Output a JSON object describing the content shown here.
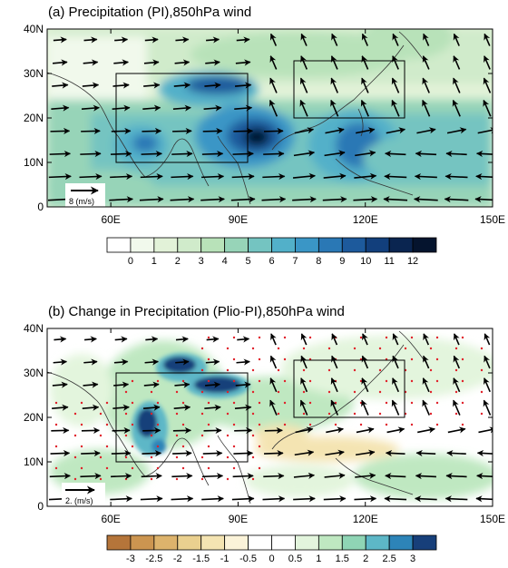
{
  "chart_data": [
    {
      "type": "map",
      "title": "(a) Precipitation (PI),850hPa wind",
      "x_ticks": [
        "60E",
        "90E",
        "120E",
        "150E"
      ],
      "y_ticks": [
        "0",
        "10N",
        "20N",
        "30N",
        "40N"
      ],
      "xlim": [
        45,
        150
      ],
      "ylim": [
        0,
        40
      ],
      "regions": [
        {
          "lon": [
            65,
            95
          ],
          "lat": [
            10,
            30
          ]
        },
        {
          "lon": [
            105,
            130
          ],
          "lat": [
            20,
            33
          ]
        }
      ],
      "reference_vector": {
        "label": "8 (m/s)"
      },
      "colorbar": {
        "labels": [
          "0",
          "1",
          "2",
          "3",
          "4",
          "5",
          "6",
          "7",
          "8",
          "9",
          "10",
          "11",
          "12"
        ],
        "colors": [
          "#ffffff",
          "#f1f9ec",
          "#e2f2d8",
          "#d0ebcb",
          "#b8e2b9",
          "#97d4b8",
          "#74c4c1",
          "#52b0c9",
          "#3a96c6",
          "#2a78b5",
          "#1d5a9c",
          "#123f7c",
          "#0a2550",
          "#05142e"
        ]
      }
    },
    {
      "type": "map",
      "title": "(b) Change in Precipitation (Plio-PI),850hPa wind",
      "x_ticks": [
        "60E",
        "90E",
        "120E",
        "150E"
      ],
      "y_ticks": [
        "0",
        "10N",
        "20N",
        "30N",
        "40N"
      ],
      "xlim": [
        45,
        150
      ],
      "ylim": [
        0,
        40
      ],
      "regions": [
        {
          "lon": [
            65,
            95
          ],
          "lat": [
            10,
            30
          ]
        },
        {
          "lon": [
            105,
            130
          ],
          "lat": [
            20,
            33
          ]
        }
      ],
      "reference_vector": {
        "label": "2. (m/s)"
      },
      "colorbar": {
        "labels": [
          "-3",
          "-2.5",
          "-2",
          "-1.5",
          "-1",
          "-0.5",
          "0",
          "0.5",
          "1",
          "1.5",
          "2",
          "2.5",
          "3"
        ],
        "colors": [
          "#b5753a",
          "#cc9550",
          "#ddb36c",
          "#ead08f",
          "#f4e4b2",
          "#fbf3d9",
          "#ffffff",
          "#ffffff",
          "#e3f5dd",
          "#bfe8c1",
          "#8fd5b5",
          "#5db7c7",
          "#2d84b8",
          "#173f7a"
        ]
      }
    }
  ]
}
